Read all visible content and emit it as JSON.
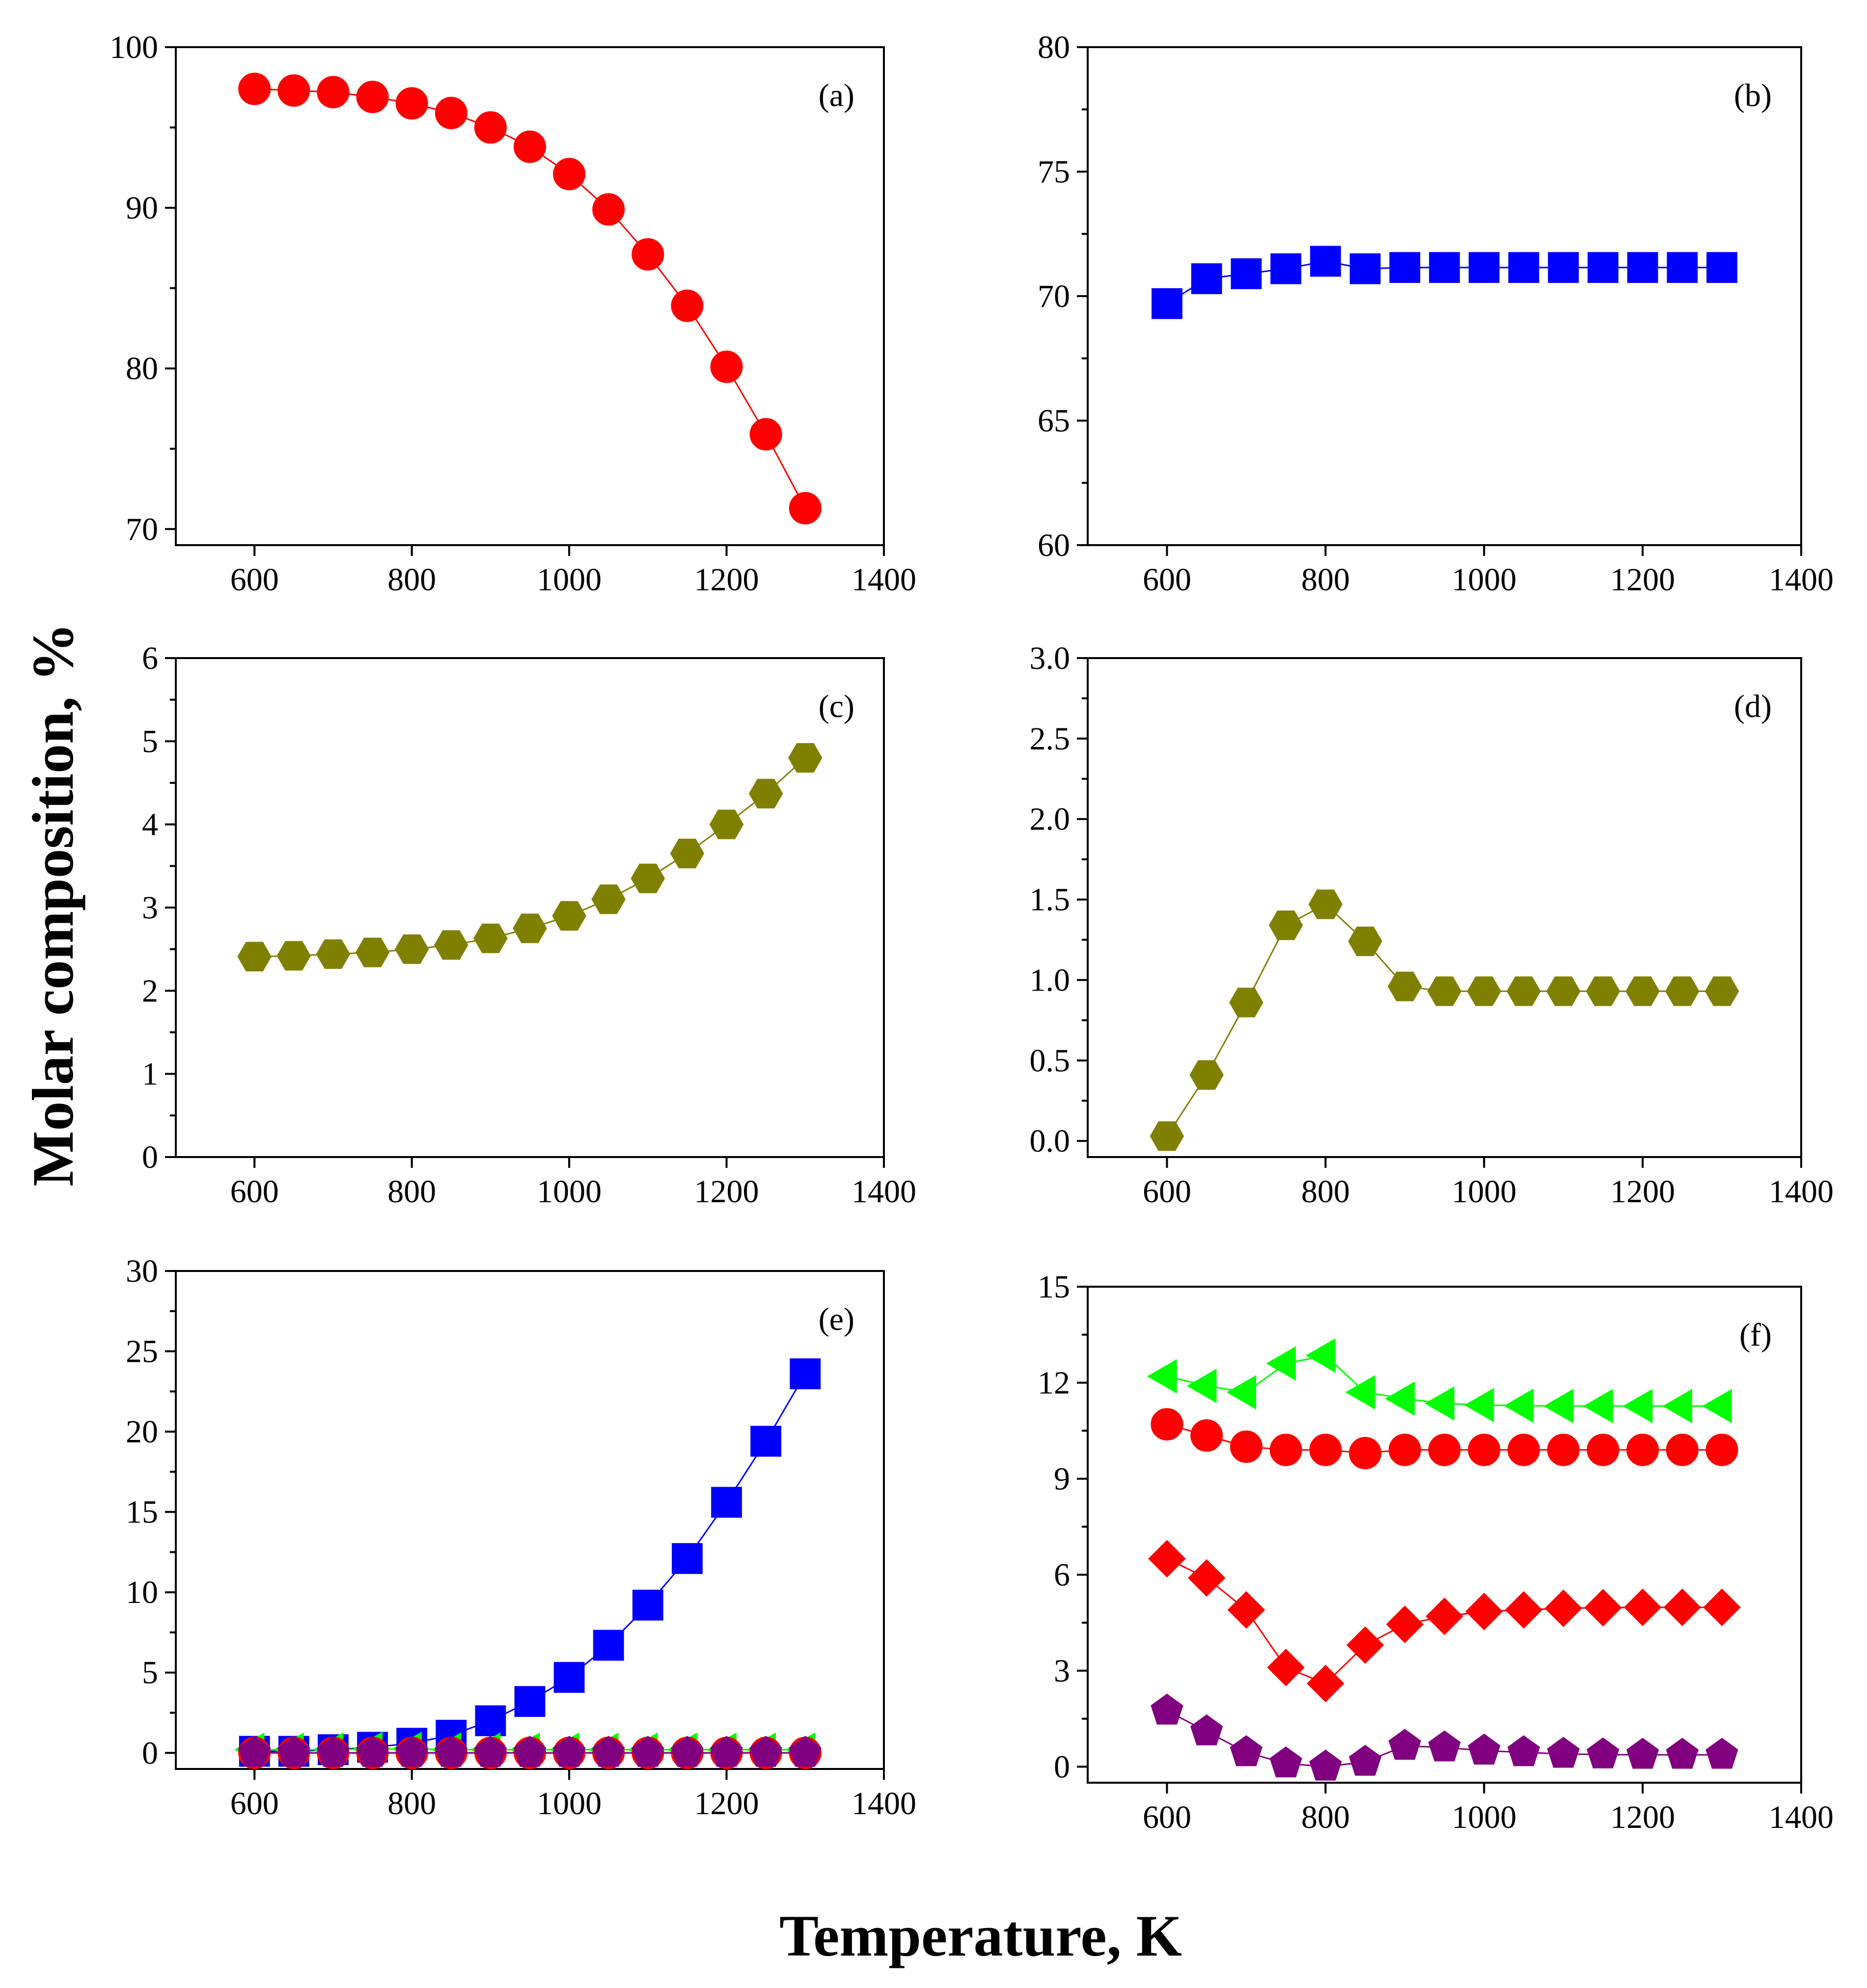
{
  "figure": {
    "x_title": "Temperature, K",
    "y_title": "Molar composition, %"
  },
  "chart_data": [
    {
      "id": "a",
      "type": "line",
      "panel_label": "(a)",
      "xlim": [
        500,
        1400
      ],
      "ylim": [
        69,
        100
      ],
      "xticks": [
        600,
        800,
        1000,
        1200,
        1400
      ],
      "yticks": [
        70,
        80,
        90,
        100
      ],
      "ytick_labels": [
        "70",
        "80",
        "90",
        "100"
      ],
      "x": [
        600,
        650,
        700,
        750,
        800,
        850,
        900,
        950,
        1000,
        1050,
        1100,
        1150,
        1200,
        1250,
        1300
      ],
      "series": [
        {
          "name": "series-1",
          "marker": "circle",
          "color": "#ff0000",
          "values": [
            97.4,
            97.3,
            97.2,
            96.9,
            96.5,
            95.9,
            95.0,
            93.8,
            92.1,
            89.9,
            87.1,
            83.9,
            80.1,
            75.9,
            71.3
          ]
        }
      ]
    },
    {
      "id": "b",
      "type": "line",
      "panel_label": "(b)",
      "xlim": [
        500,
        1400
      ],
      "ylim": [
        60,
        80
      ],
      "xticks": [
        600,
        800,
        1000,
        1200,
        1400
      ],
      "yticks": [
        60,
        65,
        70,
        75,
        80
      ],
      "ytick_labels": [
        "60",
        "65",
        "70",
        "75",
        "80"
      ],
      "x": [
        600,
        650,
        700,
        750,
        800,
        850,
        900,
        950,
        1000,
        1050,
        1100,
        1150,
        1200,
        1250,
        1300
      ],
      "series": [
        {
          "name": "series-1",
          "marker": "square",
          "color": "#0000ff",
          "values": [
            69.7,
            70.7,
            70.9,
            71.1,
            71.4,
            71.1,
            71.15,
            71.15,
            71.15,
            71.15,
            71.15,
            71.15,
            71.15,
            71.15,
            71.15
          ]
        }
      ]
    },
    {
      "id": "c",
      "type": "line",
      "panel_label": "(c)",
      "xlim": [
        500,
        1400
      ],
      "ylim": [
        0,
        6
      ],
      "xticks": [
        600,
        800,
        1000,
        1200,
        1400
      ],
      "yticks": [
        0,
        1,
        2,
        3,
        4,
        5,
        6
      ],
      "ytick_labels": [
        "0",
        "1",
        "2",
        "3",
        "4",
        "5",
        "6"
      ],
      "x": [
        600,
        650,
        700,
        750,
        800,
        850,
        900,
        950,
        1000,
        1050,
        1100,
        1150,
        1200,
        1250,
        1300
      ],
      "series": [
        {
          "name": "series-1",
          "marker": "hexagon",
          "color": "#808000",
          "values": [
            2.41,
            2.42,
            2.44,
            2.46,
            2.5,
            2.55,
            2.63,
            2.75,
            2.9,
            3.1,
            3.35,
            3.65,
            4.0,
            4.37,
            4.8
          ]
        }
      ]
    },
    {
      "id": "d",
      "type": "line",
      "panel_label": "(d)",
      "xlim": [
        500,
        1400
      ],
      "ylim": [
        -0.1,
        3.0
      ],
      "xticks": [
        600,
        800,
        1000,
        1200,
        1400
      ],
      "yticks": [
        0.0,
        0.5,
        1.0,
        1.5,
        2.0,
        2.5,
        3.0
      ],
      "ytick_labels": [
        "0.0",
        "0.5",
        "1.0",
        "1.5",
        "2.0",
        "2.5",
        "3.0"
      ],
      "x": [
        600,
        650,
        700,
        750,
        800,
        850,
        900,
        950,
        1000,
        1050,
        1100,
        1150,
        1200,
        1250,
        1300
      ],
      "series": [
        {
          "name": "series-1",
          "marker": "hexagon",
          "color": "#808000",
          "values": [
            0.03,
            0.41,
            0.86,
            1.34,
            1.47,
            1.24,
            0.96,
            0.93,
            0.93,
            0.93,
            0.93,
            0.93,
            0.93,
            0.93,
            0.93
          ]
        }
      ]
    },
    {
      "id": "e",
      "type": "line",
      "panel_label": "(e)",
      "xlim": [
        500,
        1400
      ],
      "ylim": [
        -1,
        30
      ],
      "xticks": [
        600,
        800,
        1000,
        1200,
        1400
      ],
      "yticks": [
        0,
        5,
        10,
        15,
        20,
        25,
        30
      ],
      "ytick_labels": [
        "0",
        "5",
        "10",
        "15",
        "20",
        "25",
        "30"
      ],
      "x": [
        600,
        650,
        700,
        750,
        800,
        850,
        900,
        950,
        1000,
        1050,
        1100,
        1150,
        1200,
        1250,
        1300
      ],
      "series": [
        {
          "name": "series-square",
          "marker": "square",
          "color": "#0000ff",
          "values": [
            0.1,
            0.1,
            0.2,
            0.35,
            0.6,
            1.1,
            2.0,
            3.2,
            4.7,
            6.7,
            9.2,
            12.1,
            15.6,
            19.4,
            23.6
          ]
        },
        {
          "name": "series-triangle",
          "marker": "triangle-left",
          "color": "#00ff00",
          "values": [
            0.2,
            0.2,
            0.2,
            0.25,
            0.25,
            0.2,
            0.2,
            0.2,
            0.2,
            0.2,
            0.2,
            0.2,
            0.2,
            0.2,
            0.2
          ]
        },
        {
          "name": "series-circle",
          "marker": "circle",
          "color": "#ff0000",
          "values": [
            0,
            0,
            0,
            0,
            0,
            0,
            0,
            0,
            0,
            0,
            0,
            0,
            0,
            0,
            0
          ]
        },
        {
          "name": "series-pentagon",
          "marker": "pentagon",
          "color": "#800080",
          "values": [
            0,
            0,
            0,
            0,
            0,
            0,
            0,
            0,
            0,
            0,
            0,
            0,
            0,
            0,
            0
          ]
        }
      ]
    },
    {
      "id": "f",
      "type": "line",
      "panel_label": "(f)",
      "xlim": [
        500,
        1400
      ],
      "ylim": [
        -0.5,
        15
      ],
      "xticks": [
        600,
        800,
        1000,
        1200,
        1400
      ],
      "yticks": [
        0,
        3,
        6,
        9,
        12,
        15
      ],
      "ytick_labels": [
        "0",
        "3",
        "6",
        "9",
        "12",
        "15"
      ],
      "x": [
        600,
        650,
        700,
        750,
        800,
        850,
        900,
        950,
        1000,
        1050,
        1100,
        1150,
        1200,
        1250,
        1300
      ],
      "series": [
        {
          "name": "series-triangle",
          "marker": "triangle-left",
          "color": "#00ff00",
          "values": [
            12.2,
            11.9,
            11.7,
            12.6,
            12.85,
            11.7,
            11.5,
            11.35,
            11.3,
            11.28,
            11.27,
            11.27,
            11.27,
            11.27,
            11.27
          ]
        },
        {
          "name": "series-circle",
          "marker": "circle",
          "color": "#ff0000",
          "values": [
            10.7,
            10.35,
            10.0,
            9.9,
            9.9,
            9.8,
            9.9,
            9.9,
            9.9,
            9.9,
            9.9,
            9.9,
            9.9,
            9.9,
            9.9
          ]
        },
        {
          "name": "series-diamond",
          "marker": "diamond",
          "color": "#ff0000",
          "values": [
            6.5,
            5.9,
            4.9,
            3.1,
            2.6,
            3.8,
            4.45,
            4.7,
            4.85,
            4.9,
            4.95,
            4.97,
            4.98,
            4.98,
            4.98
          ]
        },
        {
          "name": "series-pentagon",
          "marker": "pentagon",
          "color": "#800080",
          "values": [
            1.75,
            1.1,
            0.45,
            0.1,
            0.0,
            0.15,
            0.65,
            0.6,
            0.5,
            0.45,
            0.4,
            0.38,
            0.37,
            0.37,
            0.37
          ]
        }
      ]
    }
  ]
}
